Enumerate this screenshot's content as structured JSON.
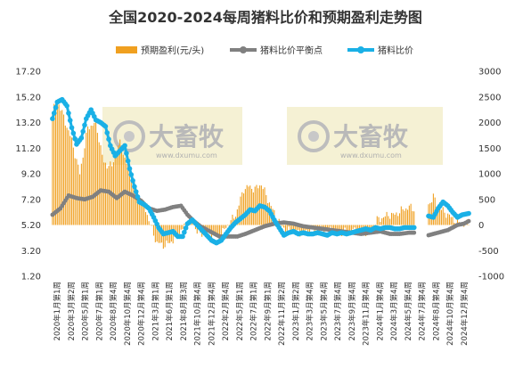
{
  "chart_data": {
    "type": "bar+line",
    "title": "全国2020-2024每周猪料比价和预期盈利走势图",
    "legend": [
      "预期盈利(元/头)",
      "猪料比价平衡点",
      "猪料比价"
    ],
    "colors": {
      "bar": "#f0a020",
      "balance": "#808080",
      "ratio": "#1ab0e6"
    },
    "left_axis": {
      "min": 1.2,
      "max": 17.2,
      "ticks": [
        "17.20",
        "15.20",
        "13.20",
        "11.20",
        "9.20",
        "7.20",
        "5.20",
        "3.20",
        "1.20"
      ]
    },
    "right_axis": {
      "min": -1000,
      "max": 3000,
      "ticks": [
        "3000",
        "2500",
        "2000",
        "1500",
        "1000",
        "500",
        "0",
        "-500",
        "-1000"
      ]
    },
    "x_labels": [
      "2020年1月第1周",
      "2020年3月第2周",
      "2020年5月第1周",
      "2020年7月第1周",
      "2020年8月第4周",
      "2020年10月第4周",
      "2020年12月第4周",
      "2021年3月第1周",
      "2021年6月第1周",
      "2021年8月第3周",
      "2021年10月第4周",
      "2021年12月第4周",
      "2022年2月第4周",
      "2022年5月第1周",
      "2022年7月第1周",
      "2022年9月第1周",
      "2022年11月第2周",
      "2023年1月第2周",
      "2023年3月第4周",
      "2023年5月第4周",
      "2023年7月第4周",
      "2023年9月第4周",
      "2023年11月第4周",
      "2024年1月第4周",
      "2024年3月第4周",
      "2024年5月第4周",
      "2024年7月第4周",
      "2024年8月第4周",
      "2024年10月第4周",
      "2024年12月第4周"
    ],
    "n_weeks": 260,
    "gap_weeks": [
      226,
      234
    ],
    "watermarks": [
      {
        "text": "大畜牧",
        "url": "www.dxumu.com"
      },
      {
        "text": "大畜牧",
        "url": "www.dxumu.com"
      }
    ],
    "profit_keypoints": [
      [
        0,
        2200
      ],
      [
        3,
        2450
      ],
      [
        7,
        2100
      ],
      [
        12,
        1650
      ],
      [
        17,
        1000
      ],
      [
        22,
        1900
      ],
      [
        27,
        2000
      ],
      [
        32,
        1200
      ],
      [
        37,
        1150
      ],
      [
        42,
        1600
      ],
      [
        46,
        1200
      ],
      [
        50,
        900
      ],
      [
        54,
        550
      ],
      [
        58,
        300
      ],
      [
        62,
        -100
      ],
      [
        65,
        -350
      ],
      [
        70,
        -400
      ],
      [
        75,
        -300
      ],
      [
        80,
        -100
      ],
      [
        86,
        100
      ],
      [
        92,
        -200
      ],
      [
        97,
        -150
      ],
      [
        103,
        -250
      ],
      [
        108,
        -50
      ],
      [
        114,
        200
      ],
      [
        119,
        700
      ],
      [
        122,
        750
      ],
      [
        126,
        700
      ],
      [
        130,
        800
      ],
      [
        134,
        500
      ],
      [
        140,
        100
      ],
      [
        145,
        -100
      ],
      [
        150,
        -150
      ],
      [
        156,
        -150
      ],
      [
        162,
        -100
      ],
      [
        168,
        -100
      ],
      [
        174,
        -100
      ],
      [
        180,
        -150
      ],
      [
        186,
        -120
      ],
      [
        192,
        -100
      ],
      [
        197,
        -150
      ],
      [
        202,
        100
      ],
      [
        206,
        150
      ],
      [
        209,
        200
      ],
      [
        213,
        200
      ],
      [
        218,
        300
      ],
      [
        222,
        350
      ],
      [
        226,
        300
      ],
      [
        228,
        300
      ],
      [
        231,
        350
      ],
      [
        234,
        400
      ],
      [
        237,
        550
      ],
      [
        240,
        350
      ],
      [
        244,
        250
      ],
      [
        248,
        150
      ],
      [
        252,
        50
      ],
      [
        256,
        10
      ],
      [
        259,
        30
      ]
    ],
    "balance_keypoints": [
      [
        0,
        6.0
      ],
      [
        5,
        6.5
      ],
      [
        10,
        7.5
      ],
      [
        15,
        7.3
      ],
      [
        20,
        7.2
      ],
      [
        25,
        7.4
      ],
      [
        30,
        7.9
      ],
      [
        35,
        7.8
      ],
      [
        40,
        7.3
      ],
      [
        45,
        7.8
      ],
      [
        50,
        7.5
      ],
      [
        55,
        7.1
      ],
      [
        60,
        6.5
      ],
      [
        65,
        6.3
      ],
      [
        70,
        6.4
      ],
      [
        75,
        6.6
      ],
      [
        80,
        6.7
      ],
      [
        84,
        6.0
      ],
      [
        88,
        5.5
      ],
      [
        92,
        5.1
      ],
      [
        98,
        4.7
      ],
      [
        104,
        4.3
      ],
      [
        110,
        4.3
      ],
      [
        115,
        4.3
      ],
      [
        120,
        4.5
      ],
      [
        126,
        4.8
      ],
      [
        132,
        5.1
      ],
      [
        138,
        5.3
      ],
      [
        144,
        5.4
      ],
      [
        150,
        5.3
      ],
      [
        156,
        5.1
      ],
      [
        162,
        5.0
      ],
      [
        168,
        4.9
      ],
      [
        174,
        4.8
      ],
      [
        180,
        4.7
      ],
      [
        186,
        4.6
      ],
      [
        192,
        4.5
      ],
      [
        198,
        4.6
      ],
      [
        204,
        4.7
      ],
      [
        210,
        4.5
      ],
      [
        216,
        4.5
      ],
      [
        222,
        4.6
      ],
      [
        226,
        4.6
      ],
      [
        234,
        4.4
      ],
      [
        240,
        4.6
      ],
      [
        246,
        4.8
      ],
      [
        252,
        5.2
      ],
      [
        256,
        5.3
      ],
      [
        259,
        5.5
      ]
    ],
    "ratio_keypoints": [
      [
        0,
        13.5
      ],
      [
        3,
        14.8
      ],
      [
        6,
        15.0
      ],
      [
        9,
        14.5
      ],
      [
        12,
        12.8
      ],
      [
        15,
        11.5
      ],
      [
        18,
        12.0
      ],
      [
        21,
        13.5
      ],
      [
        24,
        14.2
      ],
      [
        27,
        13.4
      ],
      [
        30,
        13.2
      ],
      [
        33,
        12.9
      ],
      [
        36,
        11.4
      ],
      [
        39,
        10.6
      ],
      [
        42,
        11.0
      ],
      [
        45,
        11.4
      ],
      [
        48,
        9.6
      ],
      [
        51,
        8.2
      ],
      [
        54,
        7.0
      ],
      [
        57,
        6.8
      ],
      [
        60,
        6.5
      ],
      [
        63,
        5.8
      ],
      [
        66,
        5.0
      ],
      [
        69,
        4.5
      ],
      [
        72,
        4.6
      ],
      [
        75,
        4.7
      ],
      [
        78,
        4.3
      ],
      [
        81,
        4.3
      ],
      [
        84,
        5.3
      ],
      [
        87,
        5.6
      ],
      [
        90,
        5.2
      ],
      [
        93,
        4.8
      ],
      [
        96,
        4.4
      ],
      [
        99,
        4.0
      ],
      [
        102,
        3.8
      ],
      [
        105,
        4.0
      ],
      [
        108,
        4.5
      ],
      [
        111,
        5.0
      ],
      [
        114,
        5.4
      ],
      [
        117,
        5.7
      ],
      [
        120,
        6.0
      ],
      [
        123,
        6.4
      ],
      [
        126,
        6.3
      ],
      [
        129,
        6.7
      ],
      [
        132,
        6.6
      ],
      [
        135,
        6.3
      ],
      [
        138,
        5.6
      ],
      [
        141,
        5.0
      ],
      [
        144,
        4.4
      ],
      [
        147,
        4.6
      ],
      [
        150,
        4.7
      ],
      [
        153,
        4.5
      ],
      [
        156,
        4.6
      ],
      [
        159,
        4.5
      ],
      [
        162,
        4.5
      ],
      [
        165,
        4.6
      ],
      [
        168,
        4.5
      ],
      [
        171,
        4.4
      ],
      [
        174,
        4.6
      ],
      [
        177,
        4.5
      ],
      [
        180,
        4.6
      ],
      [
        183,
        4.5
      ],
      [
        186,
        4.6
      ],
      [
        189,
        4.7
      ],
      [
        192,
        4.8
      ],
      [
        195,
        4.9
      ],
      [
        198,
        4.8
      ],
      [
        201,
        5.0
      ],
      [
        204,
        4.9
      ],
      [
        207,
        5.0
      ],
      [
        210,
        5.0
      ],
      [
        213,
        4.9
      ],
      [
        216,
        4.9
      ],
      [
        219,
        5.0
      ],
      [
        222,
        5.0
      ],
      [
        226,
        5.0
      ],
      [
        234,
        5.9
      ],
      [
        237,
        5.8
      ],
      [
        240,
        6.5
      ],
      [
        243,
        7.0
      ],
      [
        246,
        6.7
      ],
      [
        249,
        6.2
      ],
      [
        252,
        5.8
      ],
      [
        255,
        6.0
      ],
      [
        259,
        6.1
      ]
    ]
  }
}
